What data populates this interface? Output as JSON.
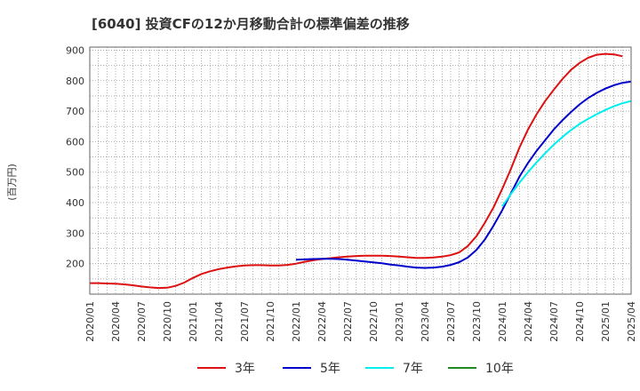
{
  "chart_data": {
    "type": "line",
    "title": "[6040]  投資CFの12か月移動合計の標準偏差の推移",
    "ylabel": "(百万円)",
    "xlabel": "",
    "ylim": [
      100,
      910
    ],
    "yticks": [
      200,
      300,
      400,
      500,
      600,
      700,
      800,
      900
    ],
    "x_ticks": [
      "2020/01",
      "2020/04",
      "2020/07",
      "2020/10",
      "2021/01",
      "2021/04",
      "2021/07",
      "2021/10",
      "2022/01",
      "2022/04",
      "2022/07",
      "2022/10",
      "2023/01",
      "2023/04",
      "2023/07",
      "2023/10",
      "2024/01",
      "2024/04",
      "2024/07",
      "2024/10",
      "2025/01",
      "2025/04"
    ],
    "grid": true,
    "legend_position": "bottom",
    "series": [
      {
        "name": "3年",
        "color": "#dd1111",
        "points": [
          [
            "2020/01",
            136
          ],
          [
            "2020/02",
            136
          ],
          [
            "2020/03",
            135
          ],
          [
            "2020/04",
            134
          ],
          [
            "2020/05",
            132
          ],
          [
            "2020/06",
            129
          ],
          [
            "2020/07",
            125
          ],
          [
            "2020/08",
            122
          ],
          [
            "2020/09",
            120
          ],
          [
            "2020/10",
            121
          ],
          [
            "2020/11",
            127
          ],
          [
            "2020/12",
            138
          ],
          [
            "2021/01",
            153
          ],
          [
            "2021/02",
            166
          ],
          [
            "2021/03",
            175
          ],
          [
            "2021/04",
            182
          ],
          [
            "2021/05",
            187
          ],
          [
            "2021/06",
            191
          ],
          [
            "2021/07",
            194
          ],
          [
            "2021/08",
            195
          ],
          [
            "2021/09",
            195
          ],
          [
            "2021/10",
            194
          ],
          [
            "2021/11",
            194
          ],
          [
            "2021/12",
            196
          ],
          [
            "2022/01",
            200
          ],
          [
            "2022/02",
            206
          ],
          [
            "2022/03",
            211
          ],
          [
            "2022/04",
            215
          ],
          [
            "2022/05",
            218
          ],
          [
            "2022/06",
            221
          ],
          [
            "2022/07",
            223
          ],
          [
            "2022/08",
            225
          ],
          [
            "2022/09",
            226
          ],
          [
            "2022/10",
            226
          ],
          [
            "2022/11",
            226
          ],
          [
            "2022/12",
            225
          ],
          [
            "2023/01",
            223
          ],
          [
            "2023/02",
            221
          ],
          [
            "2023/03",
            219
          ],
          [
            "2023/04",
            219
          ],
          [
            "2023/05",
            220
          ],
          [
            "2023/06",
            223
          ],
          [
            "2023/07",
            228
          ],
          [
            "2023/08",
            237
          ],
          [
            "2023/09",
            258
          ],
          [
            "2023/10",
            290
          ],
          [
            "2023/11",
            335
          ],
          [
            "2023/12",
            385
          ],
          [
            "2024/01",
            445
          ],
          [
            "2024/02",
            510
          ],
          [
            "2024/03",
            580
          ],
          [
            "2024/04",
            640
          ],
          [
            "2024/05",
            690
          ],
          [
            "2024/06",
            733
          ],
          [
            "2024/07",
            770
          ],
          [
            "2024/08",
            805
          ],
          [
            "2024/09",
            835
          ],
          [
            "2024/10",
            858
          ],
          [
            "2024/11",
            875
          ],
          [
            "2024/12",
            885
          ],
          [
            "2025/01",
            888
          ],
          [
            "2025/02",
            886
          ],
          [
            "2025/03",
            880
          ]
        ]
      },
      {
        "name": "5年",
        "color": "#0000cc",
        "points": [
          [
            "2022/01",
            213
          ],
          [
            "2022/02",
            214
          ],
          [
            "2022/03",
            215
          ],
          [
            "2022/04",
            216
          ],
          [
            "2022/05",
            216
          ],
          [
            "2022/06",
            215
          ],
          [
            "2022/07",
            213
          ],
          [
            "2022/08",
            210
          ],
          [
            "2022/09",
            207
          ],
          [
            "2022/10",
            204
          ],
          [
            "2022/11",
            201
          ],
          [
            "2022/12",
            197
          ],
          [
            "2023/01",
            194
          ],
          [
            "2023/02",
            190
          ],
          [
            "2023/03",
            187
          ],
          [
            "2023/04",
            186
          ],
          [
            "2023/05",
            187
          ],
          [
            "2023/06",
            190
          ],
          [
            "2023/07",
            196
          ],
          [
            "2023/08",
            205
          ],
          [
            "2023/09",
            220
          ],
          [
            "2023/10",
            245
          ],
          [
            "2023/11",
            280
          ],
          [
            "2023/12",
            325
          ],
          [
            "2024/01",
            375
          ],
          [
            "2024/02",
            430
          ],
          [
            "2024/03",
            485
          ],
          [
            "2024/04",
            530
          ],
          [
            "2024/05",
            570
          ],
          [
            "2024/06",
            605
          ],
          [
            "2024/07",
            640
          ],
          [
            "2024/08",
            670
          ],
          [
            "2024/09",
            697
          ],
          [
            "2024/10",
            722
          ],
          [
            "2024/11",
            743
          ],
          [
            "2024/12",
            760
          ],
          [
            "2025/01",
            774
          ],
          [
            "2025/02",
            785
          ],
          [
            "2025/03",
            793
          ],
          [
            "2025/04",
            797
          ]
        ]
      },
      {
        "name": "7年",
        "color": "#00eeee",
        "points": [
          [
            "2024/01",
            388
          ],
          [
            "2024/02",
            428
          ],
          [
            "2024/03",
            465
          ],
          [
            "2024/04",
            500
          ],
          [
            "2024/05",
            532
          ],
          [
            "2024/06",
            562
          ],
          [
            "2024/07",
            590
          ],
          [
            "2024/08",
            615
          ],
          [
            "2024/09",
            638
          ],
          [
            "2024/10",
            658
          ],
          [
            "2024/11",
            675
          ],
          [
            "2024/12",
            690
          ],
          [
            "2025/01",
            704
          ],
          [
            "2025/02",
            716
          ],
          [
            "2025/03",
            726
          ],
          [
            "2025/04",
            733
          ]
        ]
      },
      {
        "name": "10年",
        "color": "#228822",
        "points": []
      }
    ]
  }
}
